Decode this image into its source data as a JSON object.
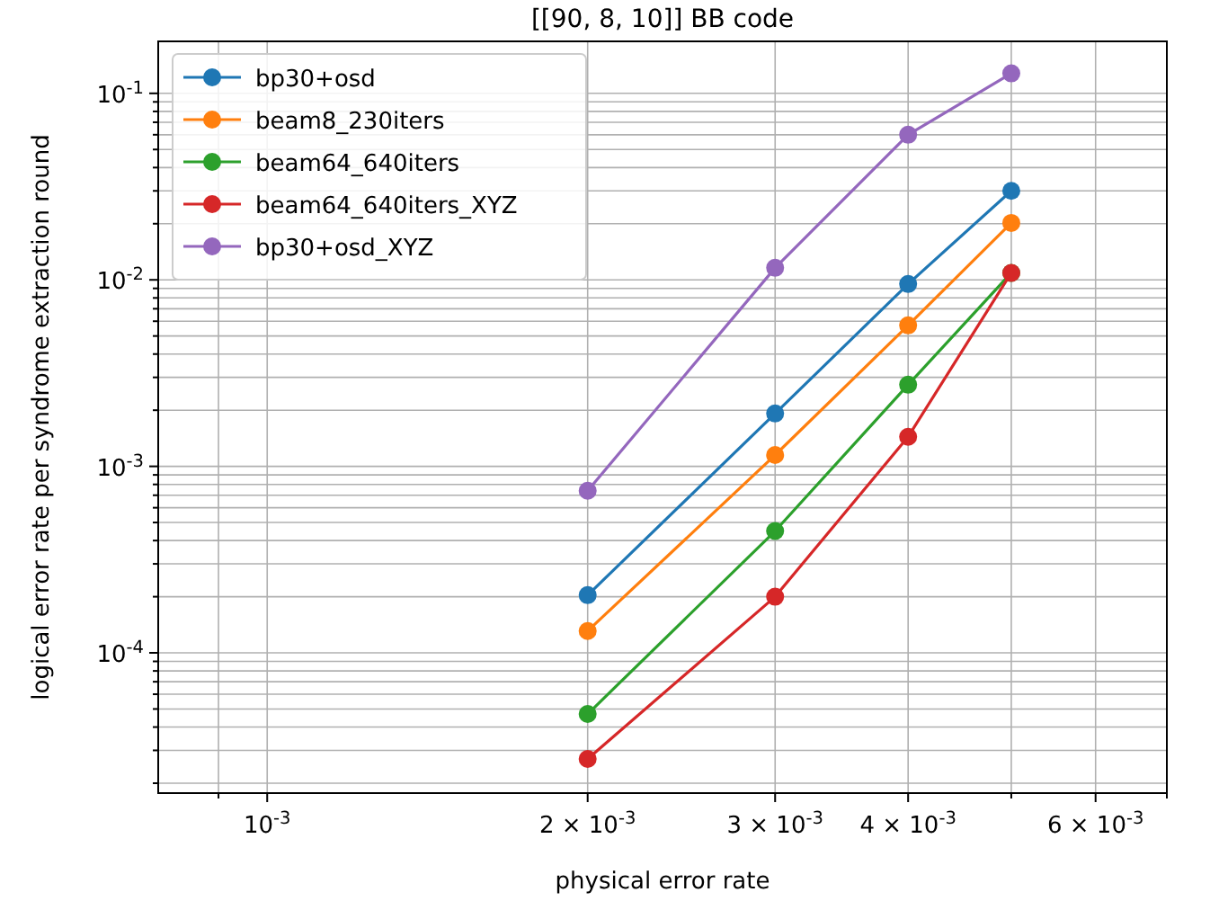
{
  "chart_data": {
    "type": "line",
    "title": "[[90, 8, 10]] BB code",
    "xlabel": "physical error rate",
    "ylabel": "logical error rate per syndrome extraction round",
    "log": "xy",
    "grid": true,
    "legend": "top left",
    "marker": "circle",
    "line_style": "solid",
    "x": [
      0.002,
      0.003,
      0.004,
      0.005
    ],
    "xlim": [
      0.00079,
      0.007
    ],
    "xticks": [
      {
        "value": 0.0009,
        "label": null
      },
      {
        "value": 0.001,
        "label": "10$^{-3}$"
      },
      {
        "value": 0.002,
        "label": "2 × 10$^{-3}$"
      },
      {
        "value": 0.003,
        "label": "3 × 10$^{-3}$"
      },
      {
        "value": 0.004,
        "label": "4 × 10$^{-3}$"
      },
      {
        "value": 0.005,
        "label": null
      },
      {
        "value": 0.006,
        "label": "6 × 10$^{-3}$"
      },
      {
        "value": 0.007,
        "label": null
      }
    ],
    "ylim": [
      1.77e-05,
      0.19
    ],
    "yticks": [
      {
        "value": 2e-05,
        "label": null
      },
      {
        "value": 3e-05,
        "label": null
      },
      {
        "value": 4e-05,
        "label": null
      },
      {
        "value": 5e-05,
        "label": null
      },
      {
        "value": 6e-05,
        "label": null
      },
      {
        "value": 7e-05,
        "label": null
      },
      {
        "value": 8e-05,
        "label": null
      },
      {
        "value": 9e-05,
        "label": null
      },
      {
        "value": 0.0001,
        "label": "10$^{-4}$"
      },
      {
        "value": 0.0002,
        "label": null
      },
      {
        "value": 0.0003,
        "label": null
      },
      {
        "value": 0.0004,
        "label": null
      },
      {
        "value": 0.0005,
        "label": null
      },
      {
        "value": 0.0006,
        "label": null
      },
      {
        "value": 0.0007,
        "label": null
      },
      {
        "value": 0.0008,
        "label": null
      },
      {
        "value": 0.0009,
        "label": null
      },
      {
        "value": 0.001,
        "label": "10$^{-3}$"
      },
      {
        "value": 0.002,
        "label": null
      },
      {
        "value": 0.003,
        "label": null
      },
      {
        "value": 0.004,
        "label": null
      },
      {
        "value": 0.005,
        "label": null
      },
      {
        "value": 0.006,
        "label": null
      },
      {
        "value": 0.007,
        "label": null
      },
      {
        "value": 0.008,
        "label": null
      },
      {
        "value": 0.009,
        "label": null
      },
      {
        "value": 0.01,
        "label": "10$^{-2}$"
      },
      {
        "value": 0.02,
        "label": null
      },
      {
        "value": 0.03,
        "label": null
      },
      {
        "value": 0.04,
        "label": null
      },
      {
        "value": 0.05,
        "label": null
      },
      {
        "value": 0.06,
        "label": null
      },
      {
        "value": 0.07,
        "label": null
      },
      {
        "value": 0.08,
        "label": null
      },
      {
        "value": 0.09,
        "label": null
      },
      {
        "value": 0.1,
        "label": "10$^{-1}$"
      }
    ],
    "series": [
      {
        "name": "bp30+osd",
        "color": "#1f77b4",
        "values": [
          0.000204,
          0.00192,
          0.0095,
          0.03
        ]
      },
      {
        "name": "beam8_230iters",
        "color": "#ff7f0e",
        "values": [
          0.000131,
          0.00115,
          0.0057,
          0.0202
        ]
      },
      {
        "name": "beam64_640iters",
        "color": "#2ca02c",
        "values": [
          4.7e-05,
          0.00045,
          0.00274,
          0.0109
        ]
      },
      {
        "name": "beam64_640iters_XYZ",
        "color": "#d62728",
        "values": [
          2.7e-05,
          0.0002,
          0.00144,
          0.0109
        ]
      },
      {
        "name": "bp30+osd_XYZ",
        "color": "#9467bd",
        "values": [
          0.00074,
          0.0116,
          0.06,
          0.128
        ]
      }
    ]
  }
}
